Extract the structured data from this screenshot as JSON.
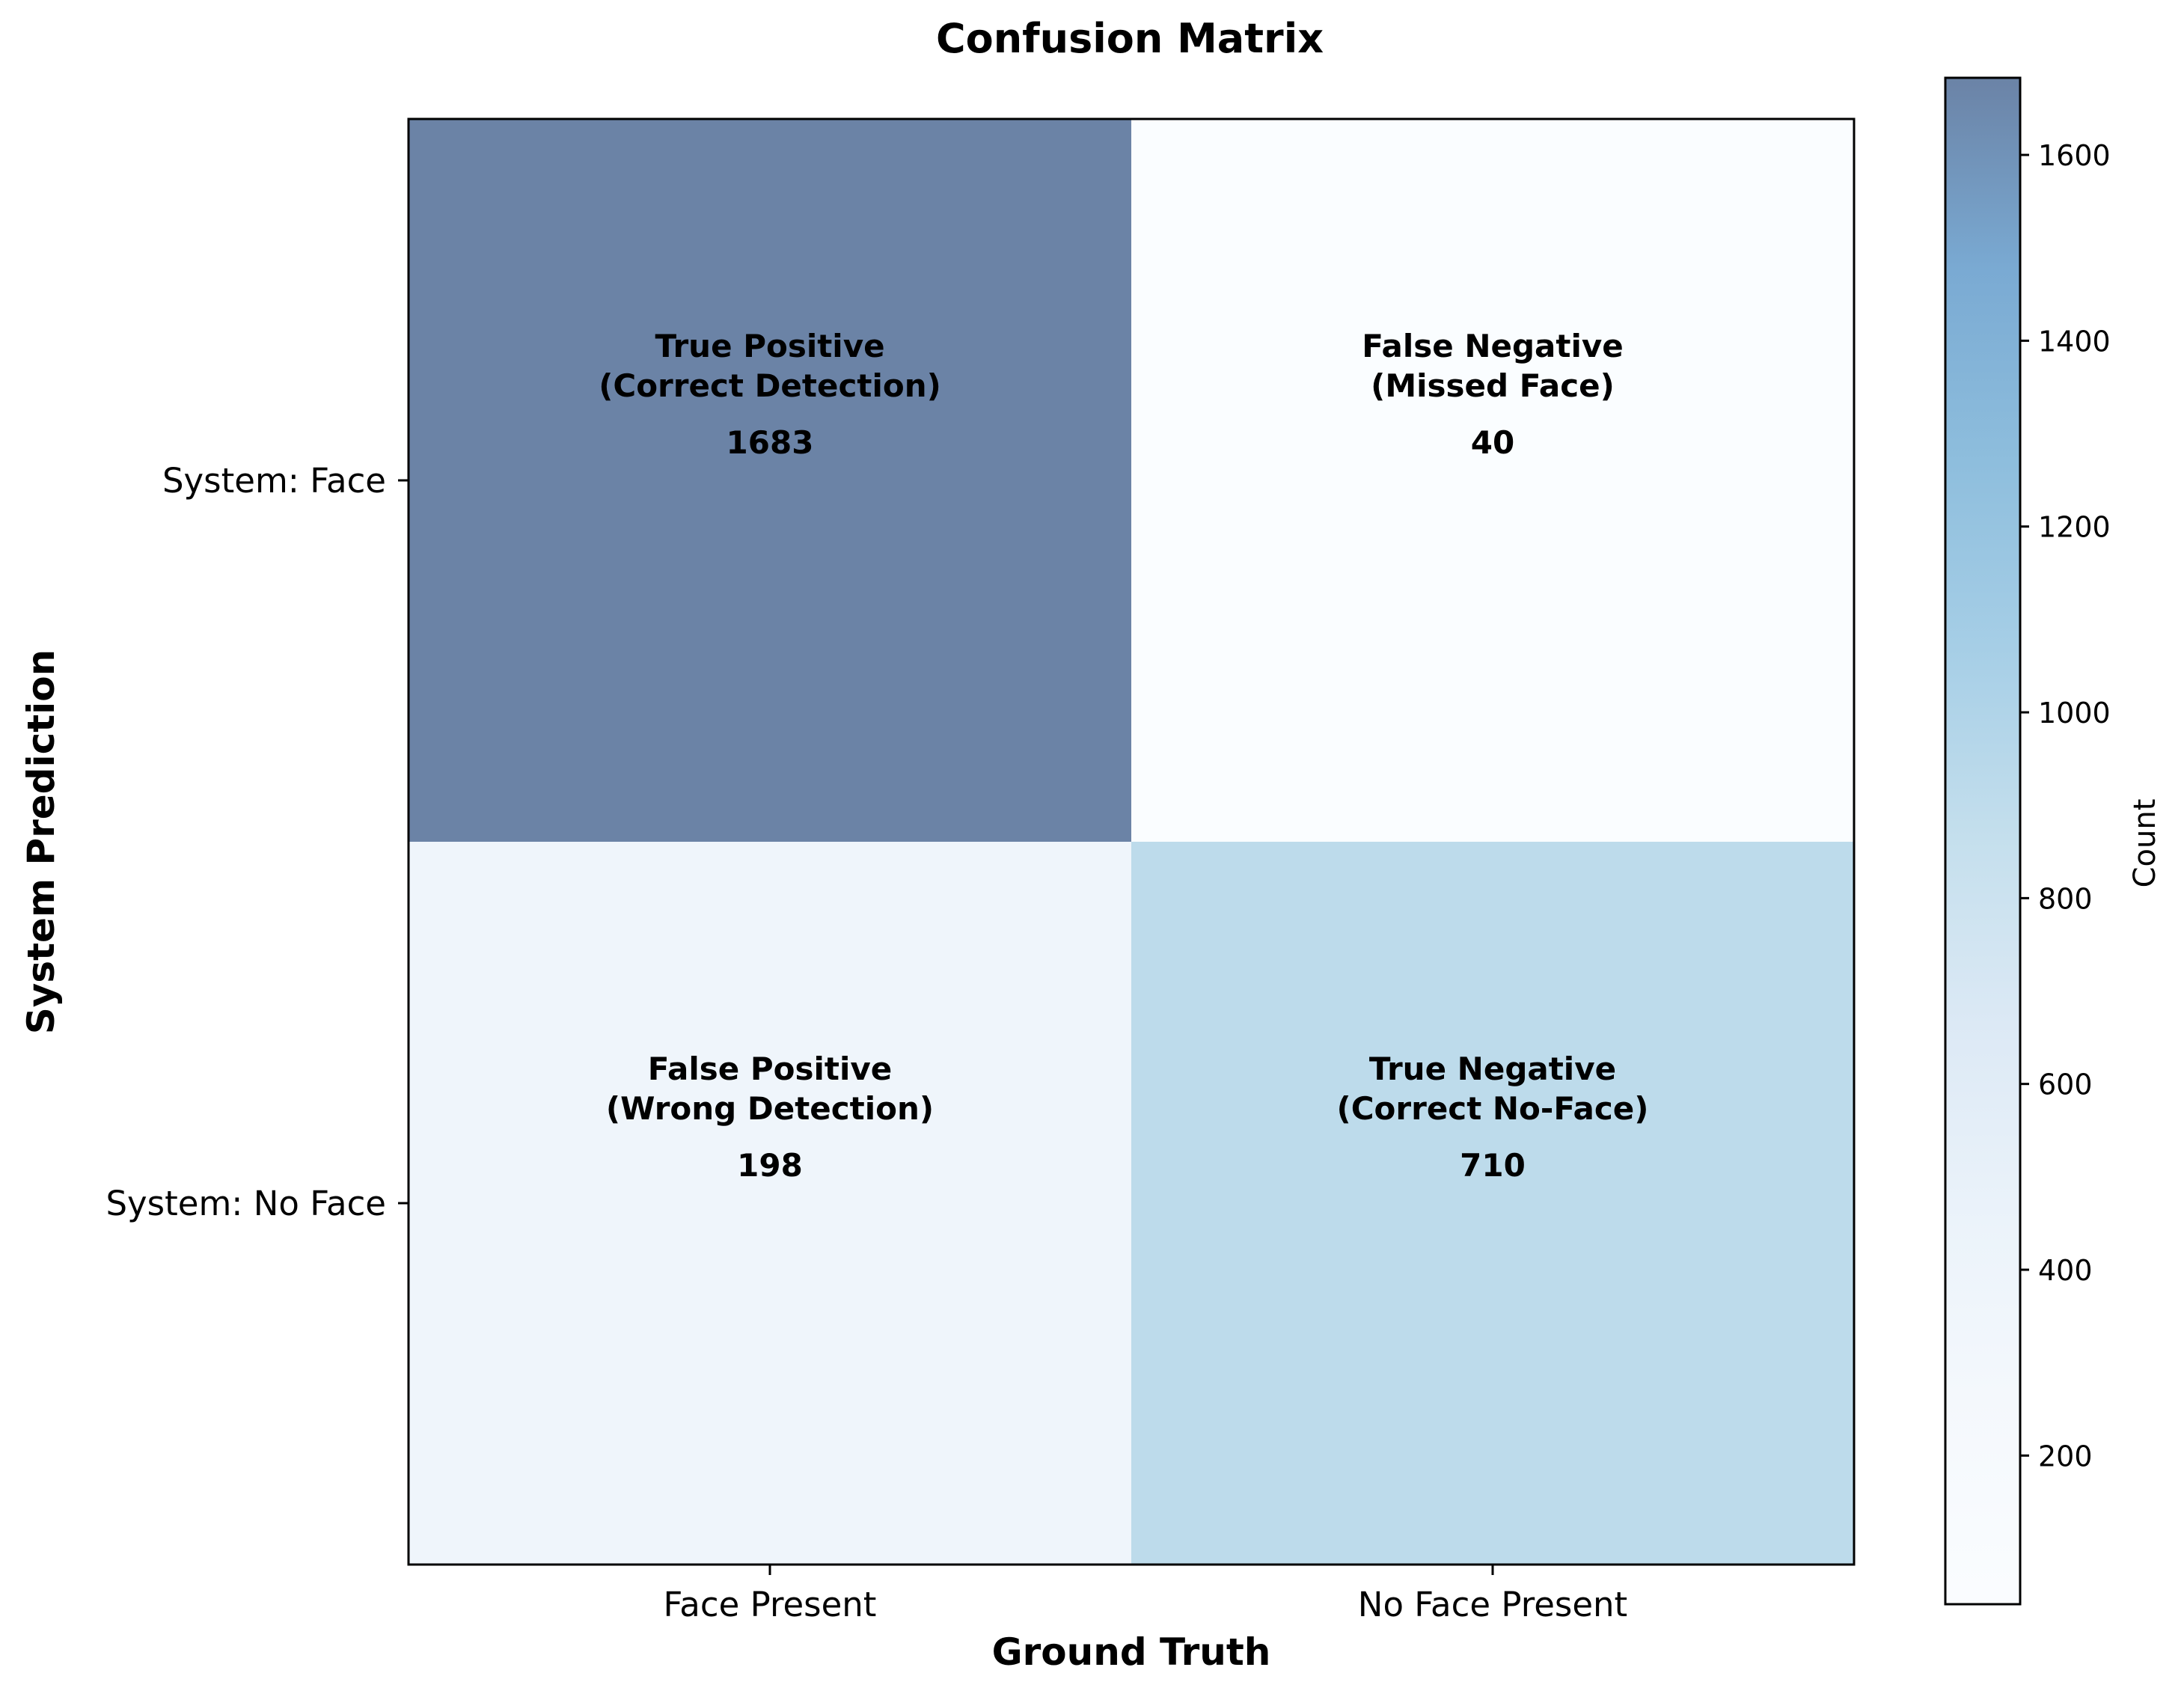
{
  "chart_data": {
    "type": "heatmap",
    "title": "Confusion Matrix",
    "xlabel": "Ground Truth",
    "ylabel": "System Prediction",
    "x_categories": [
      "Face Present",
      "No Face Present"
    ],
    "y_categories": [
      "System: Face",
      "System: No Face"
    ],
    "values": [
      [
        1683,
        40
      ],
      [
        198,
        710
      ]
    ],
    "cell_labels": [
      [
        {
          "line1": "True Positive",
          "line2": "(Correct Detection)"
        },
        {
          "line1": "False Negative",
          "line2": "(Missed Face)"
        }
      ],
      [
        {
          "line1": "False Positive",
          "line2": "(Wrong Detection)"
        },
        {
          "line1": "True Negative",
          "line2": "(Correct No-Face)"
        }
      ]
    ],
    "colorbar": {
      "label": "Count",
      "min": 40,
      "max": 1683,
      "ticks": [
        "200",
        "400",
        "600",
        "800",
        "1000",
        "1200",
        "1400",
        "1600"
      ],
      "colormap": "Blues",
      "alpha": 0.6
    },
    "grid": false,
    "colors": {
      "cell_max": "#6b83a8",
      "cell_min": "#f7fbff"
    }
  }
}
